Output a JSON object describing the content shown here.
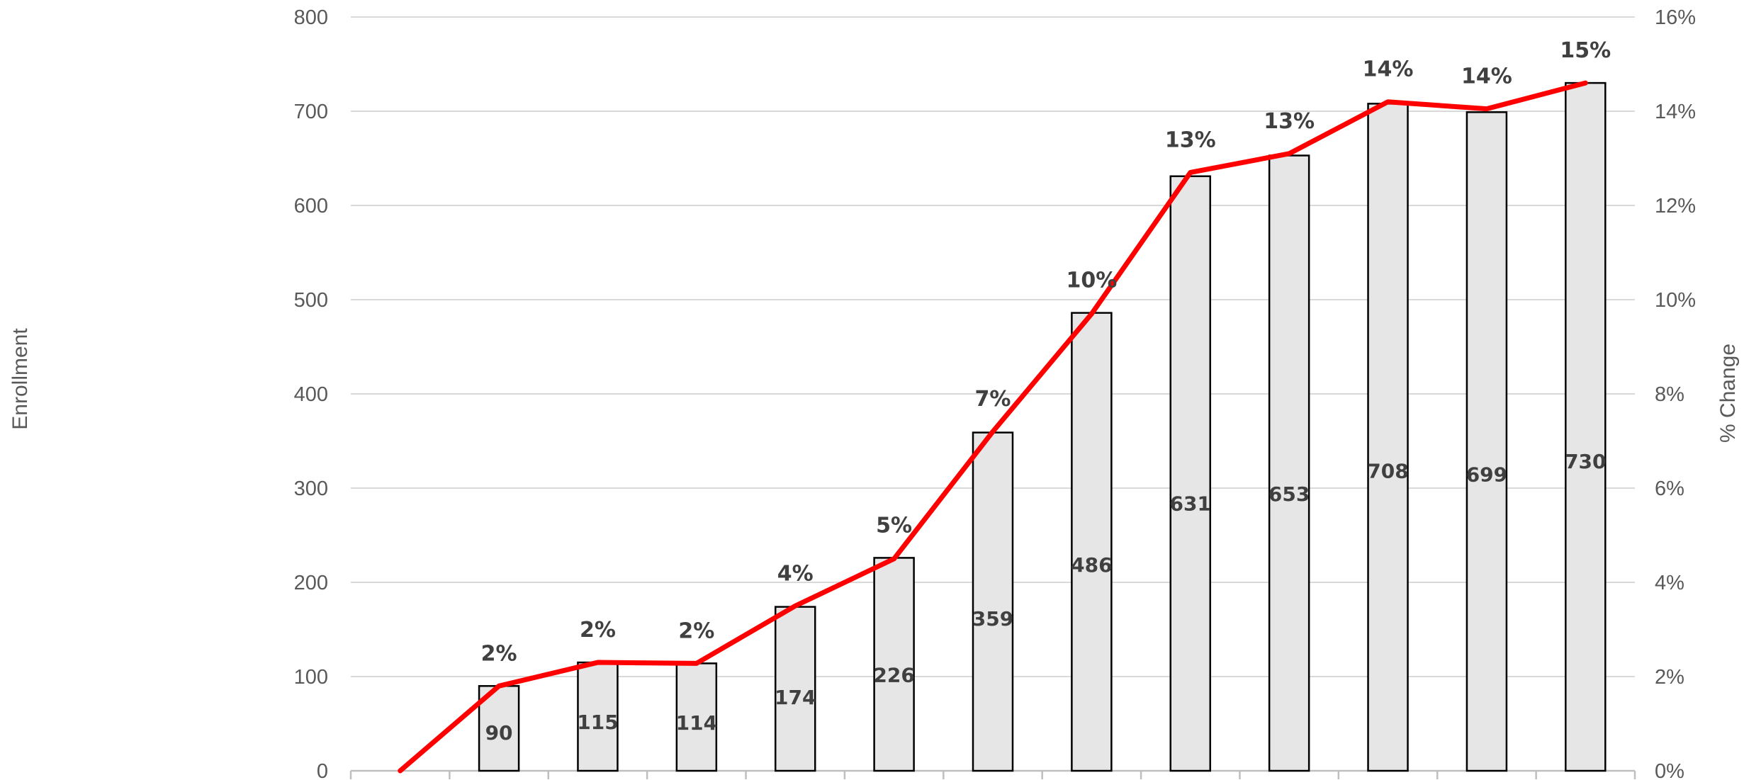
{
  "chart_data": {
    "type": "bar",
    "title": "",
    "ylabel": "Enrollment",
    "y2label": "% Change",
    "ylim": [
      0,
      800
    ],
    "y2lim": [
      0,
      16
    ],
    "yticks": [
      "0",
      "100",
      "200",
      "300",
      "400",
      "500",
      "600",
      "700",
      "800"
    ],
    "y2ticks": [
      "0%",
      "2%",
      "4%",
      "6%",
      "8%",
      "10%",
      "12%",
      "14%",
      "16%"
    ],
    "grid": true,
    "series": [
      {
        "type": "bar",
        "axis": "left",
        "values": [
          null,
          90,
          115,
          114,
          174,
          226,
          359,
          486,
          631,
          653,
          708,
          699,
          730
        ],
        "labels": [
          "",
          "90",
          "115",
          "114",
          "174",
          "226",
          "359",
          "486",
          "631",
          "653",
          "708",
          "699",
          "730"
        ]
      },
      {
        "type": "line",
        "axis": "right",
        "values": [
          0,
          1.8,
          2.3,
          2.28,
          3.5,
          4.5,
          7.2,
          9.7,
          12.7,
          13.1,
          14.2,
          14.05,
          14.6
        ],
        "labels": [
          "",
          "2%",
          "2%",
          "2%",
          "4%",
          "5%",
          "7%",
          "10%",
          "13%",
          "13%",
          "14%",
          "14%",
          "15%"
        ]
      }
    ]
  },
  "colors": {
    "bar_fill": "#e6e6e6",
    "bar_stroke": "#000000",
    "line": "#ff0000",
    "grid": "#d9d9d9",
    "axis_line": "#bfbfbf",
    "tick_text": "#595959",
    "label_text": "#404040"
  }
}
